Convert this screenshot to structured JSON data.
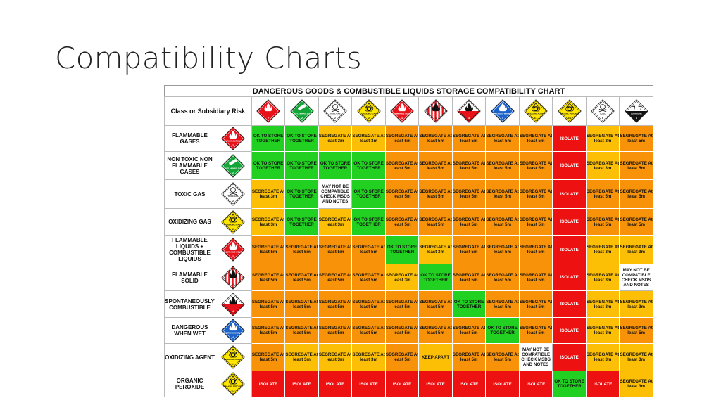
{
  "slide": {
    "title": "Compatibility Charts"
  },
  "chart": {
    "title": "DANGEROUS GOODS & COMBUSTIBLE LIQUIDS STORAGE COMPATIBILITY CHART",
    "corner_label": "Class or Subsidiary Risk",
    "colors": {
      "green": "#22d022",
      "yellow": "#fdbf05",
      "orange": "#f79209",
      "red": "#ee1111",
      "white": "#ffffff"
    },
    "columns": [
      {
        "icon": "flammable-gas-sign-icon",
        "color": "#e8121b",
        "text": "",
        "num": "2",
        "symbol": "flame"
      },
      {
        "icon": "non-flammable-gas-sign-icon",
        "color": "#13a538",
        "text": "NON-FLAMMABLE GAS",
        "num": "2",
        "symbol": "cylinder"
      },
      {
        "icon": "toxic-gas-sign-icon",
        "color": "#ffffff",
        "text": "TOXIC GAS",
        "num": "2",
        "symbol": "skull"
      },
      {
        "icon": "oxidizing-gas-sign-icon",
        "color": "#ffe600",
        "text": "OXIDIZING GAS",
        "num": "2",
        "symbol": "oflame"
      },
      {
        "icon": "flammable-liquid-sign-icon",
        "color": "#e8121b",
        "text": "FLAMMABLE LIQUID",
        "num": "3",
        "symbol": "flame"
      },
      {
        "icon": "flammable-solid-sign-icon",
        "color": "stripes",
        "text": "",
        "num": "4",
        "symbol": "flame"
      },
      {
        "icon": "spontaneously-combustible-sign-icon",
        "color": "half",
        "text": "",
        "num": "4",
        "symbol": "flame"
      },
      {
        "icon": "dangerous-when-wet-sign-icon",
        "color": "#1b62c9",
        "text": "DANGEROUS WHEN WET",
        "num": "4",
        "symbol": "flame"
      },
      {
        "icon": "oxidizing-agent-sign-icon",
        "color": "#ffe600",
        "text": "OXIDIZING AGENT",
        "num": "5.1",
        "symbol": "oflame"
      },
      {
        "icon": "organic-peroxide-sign-icon",
        "color": "#ffe600",
        "text": "ORGANIC PEROXIDE",
        "num": "5.2",
        "symbol": "oflame"
      },
      {
        "icon": "toxic-sign-icon",
        "color": "#ffffff",
        "text": "TOXIC",
        "num": "6",
        "symbol": "skull"
      },
      {
        "icon": "corrosive-sign-icon",
        "color": "corrosive",
        "text": "CORROSIVE",
        "num": "8",
        "symbol": "corrosive"
      }
    ],
    "rows": [
      {
        "label": "FLAMMABLE GASES",
        "icon": "flammable-gas-sign-icon",
        "color": "#e8121b",
        "text": "FLAMMABLE GAS",
        "num": "2",
        "symbol": "flame",
        "cells": [
          {
            "c": "green",
            "t": "OK TO STORE TOGETHER"
          },
          {
            "c": "green",
            "t": "OK TO STORE TOGETHER"
          },
          {
            "c": "yellow",
            "t": "SEGREGATE At least 3m"
          },
          {
            "c": "yellow",
            "t": "SEGREGATE At least 3m"
          },
          {
            "c": "orange",
            "t": "SEGREGATE At least 5m"
          },
          {
            "c": "orange",
            "t": "SEGREGATE At least 5m"
          },
          {
            "c": "orange",
            "t": "SEGREGATE At least 5m"
          },
          {
            "c": "orange",
            "t": "SEGREGATE At least 5m"
          },
          {
            "c": "orange",
            "t": "SEGREGATE At least 5m"
          },
          {
            "c": "red",
            "t": "ISOLATE"
          },
          {
            "c": "yellow",
            "t": "SEGREGATE At least 3m"
          },
          {
            "c": "orange",
            "t": "SEGREGATE At least 5m"
          }
        ]
      },
      {
        "label": "NON TOXIC NON FLAMMABLE GASES",
        "icon": "non-flammable-gas-sign-icon",
        "color": "#13a538",
        "text": "NON-FLAMMABLE GAS",
        "num": "2",
        "symbol": "cylinder",
        "cells": [
          {
            "c": "green",
            "t": "OK TO STORE TOGETHER"
          },
          {
            "c": "green",
            "t": "OK TO STORE TOGETHER"
          },
          {
            "c": "green",
            "t": "OK TO STORE TOGETHER"
          },
          {
            "c": "green",
            "t": "OK TO STORE TOGETHER"
          },
          {
            "c": "orange",
            "t": "SEGREGATE At least 5m"
          },
          {
            "c": "orange",
            "t": "SEGREGATE At least 5m"
          },
          {
            "c": "orange",
            "t": "SEGREGATE At least 5m"
          },
          {
            "c": "orange",
            "t": "SEGREGATE At least 5m"
          },
          {
            "c": "orange",
            "t": "SEGREGATE At least 5m"
          },
          {
            "c": "red",
            "t": "ISOLATE"
          },
          {
            "c": "yellow",
            "t": "SEGREGATE At least 3m"
          },
          {
            "c": "orange",
            "t": "SEGREGATE At least 5m"
          }
        ]
      },
      {
        "label": "TOXIC GAS",
        "icon": "toxic-gas-sign-icon",
        "color": "#ffffff",
        "text": "TOXIC GAS",
        "num": "2",
        "symbol": "skull",
        "cells": [
          {
            "c": "yellow",
            "t": "SEGREGATE At least 3m"
          },
          {
            "c": "green",
            "t": "OK TO STORE TOGETHER"
          },
          {
            "c": "white",
            "t": "MAY NOT BE COMPATIBLE CHECK MSDS AND NOTES"
          },
          {
            "c": "green",
            "t": "OK TO STORE TOGETHER"
          },
          {
            "c": "orange",
            "t": "SEGREGATE At least 5m"
          },
          {
            "c": "orange",
            "t": "SEGREGATE At least 5m"
          },
          {
            "c": "orange",
            "t": "SEGREGATE At least 5m"
          },
          {
            "c": "orange",
            "t": "SEGREGATE At least 5m"
          },
          {
            "c": "orange",
            "t": "SEGREGATE At least 5m"
          },
          {
            "c": "red",
            "t": "ISOLATE"
          },
          {
            "c": "orange",
            "t": "SEGREGATE At least 5m"
          },
          {
            "c": "orange",
            "t": "SEGREGATE At least 5m"
          }
        ]
      },
      {
        "label": "OXIDIZING GAS",
        "icon": "oxidizing-gas-sign-icon",
        "color": "#ffe600",
        "text": "OXIDIZING GAS",
        "num": "2",
        "symbol": "oflame",
        "cells": [
          {
            "c": "yellow",
            "t": "SEGREGATE At least 3m"
          },
          {
            "c": "green",
            "t": "OK TO STORE TOGETHER"
          },
          {
            "c": "yellow",
            "t": "SEGREGATE At least 3m"
          },
          {
            "c": "green",
            "t": "OK TO STORE TOGETHER"
          },
          {
            "c": "orange",
            "t": "SEGREGATE At least 5m"
          },
          {
            "c": "orange",
            "t": "SEGREGATE At least 5m"
          },
          {
            "c": "orange",
            "t": "SEGREGATE At least 5m"
          },
          {
            "c": "orange",
            "t": "SEGREGATE At least 5m"
          },
          {
            "c": "orange",
            "t": "SEGREGATE At least 5m"
          },
          {
            "c": "red",
            "t": "ISOLATE"
          },
          {
            "c": "orange",
            "t": "SEGREGATE At least 5m"
          },
          {
            "c": "orange",
            "t": "SEGREGATE At least 5m"
          }
        ]
      },
      {
        "label": "FLAMMABLE LIQUIDS + COMBUSTIBLE LIQUIDS",
        "icon": "flammable-liquid-sign-icon",
        "color": "#e8121b",
        "text": "FLAMMABLE LIQUID",
        "num": "3",
        "symbol": "flame",
        "cells": [
          {
            "c": "orange",
            "t": "SEGREGATE At least 5m"
          },
          {
            "c": "orange",
            "t": "SEGREGATE At least 5m"
          },
          {
            "c": "orange",
            "t": "SEGREGATE At least 5m"
          },
          {
            "c": "orange",
            "t": "SEGREGATE At least 5m"
          },
          {
            "c": "green",
            "t": "OK TO STORE TOGETHER"
          },
          {
            "c": "yellow",
            "t": "SEGREGATE At least 3m"
          },
          {
            "c": "orange",
            "t": "SEGREGATE At least 5m"
          },
          {
            "c": "orange",
            "t": "SEGREGATE At least 5m"
          },
          {
            "c": "orange",
            "t": "SEGREGATE At least 5m"
          },
          {
            "c": "red",
            "t": "ISOLATE"
          },
          {
            "c": "yellow",
            "t": "SEGREGATE At least 3m"
          },
          {
            "c": "yellow",
            "t": "SEGREGATE At least 3m"
          }
        ]
      },
      {
        "label": "FLAMMABLE SOLID",
        "icon": "flammable-solid-sign-icon",
        "color": "stripes",
        "text": "",
        "num": "4",
        "symbol": "flame",
        "cells": [
          {
            "c": "orange",
            "t": "SEGREGATE At least 5m"
          },
          {
            "c": "orange",
            "t": "SEGREGATE At least 5m"
          },
          {
            "c": "orange",
            "t": "SEGREGATE At least 5m"
          },
          {
            "c": "orange",
            "t": "SEGREGATE At least 5m"
          },
          {
            "c": "yellow",
            "t": "SEGREGATE At least 3m"
          },
          {
            "c": "green",
            "t": "OK TO STORE TOGETHER"
          },
          {
            "c": "orange",
            "t": "SEGREGATE At least 5m"
          },
          {
            "c": "orange",
            "t": "SEGREGATE At least 5m"
          },
          {
            "c": "orange",
            "t": "SEGREGATE At least 5m"
          },
          {
            "c": "red",
            "t": "ISOLATE"
          },
          {
            "c": "yellow",
            "t": "SEGREGATE At least 3m"
          },
          {
            "c": "white",
            "t": "MAY NOT BE COMPATIBLE CHECK MSDS AND NOTES"
          }
        ]
      },
      {
        "label": "SPONTANEOUSLY COMBUSTIBLE",
        "icon": "spontaneously-combustible-sign-icon",
        "color": "half",
        "text": "",
        "num": "4",
        "symbol": "flame",
        "cells": [
          {
            "c": "orange",
            "t": "SEGREGATE At least 5m"
          },
          {
            "c": "orange",
            "t": "SEGREGATE At least 5m"
          },
          {
            "c": "orange",
            "t": "SEGREGATE At least 5m"
          },
          {
            "c": "orange",
            "t": "SEGREGATE At least 5m"
          },
          {
            "c": "orange",
            "t": "SEGREGATE At least 5m"
          },
          {
            "c": "orange",
            "t": "SEGREGATE At least 5m"
          },
          {
            "c": "green",
            "t": "OK TO STORE TOGETHER"
          },
          {
            "c": "orange",
            "t": "SEGREGATE At least 5m"
          },
          {
            "c": "orange",
            "t": "SEGREGATE At least 5m"
          },
          {
            "c": "red",
            "t": "ISOLATE"
          },
          {
            "c": "yellow",
            "t": "SEGREGATE At least 3m"
          },
          {
            "c": "yellow",
            "t": "SEGREGATE At least 3m"
          }
        ]
      },
      {
        "label": "DANGEROUS WHEN WET",
        "icon": "dangerous-when-wet-sign-icon",
        "color": "#1b62c9",
        "text": "DANGEROUS WHEN WET",
        "num": "4",
        "symbol": "flame",
        "cells": [
          {
            "c": "orange",
            "t": "SEGREGATE At least 5m"
          },
          {
            "c": "orange",
            "t": "SEGREGATE At least 5m"
          },
          {
            "c": "orange",
            "t": "SEGREGATE At least 5m"
          },
          {
            "c": "orange",
            "t": "SEGREGATE At least 5m"
          },
          {
            "c": "orange",
            "t": "SEGREGATE At least 5m"
          },
          {
            "c": "orange",
            "t": "SEGREGATE At least 5m"
          },
          {
            "c": "orange",
            "t": "SEGREGATE At least 5m"
          },
          {
            "c": "green",
            "t": "OK TO STORE TOGETHER"
          },
          {
            "c": "orange",
            "t": "SEGREGATE At least 5m"
          },
          {
            "c": "red",
            "t": "ISOLATE"
          },
          {
            "c": "yellow",
            "t": "SEGREGATE At least 3m"
          },
          {
            "c": "orange",
            "t": "SEGREGATE At least 5m"
          }
        ]
      },
      {
        "label": "OXIDIZING AGENT",
        "icon": "oxidizing-agent-sign-icon",
        "color": "#ffe600",
        "text": "OXIDIZING AGENT",
        "num": "5.1",
        "symbol": "oflame",
        "cells": [
          {
            "c": "orange",
            "t": "SEGREGATE At least 5m"
          },
          {
            "c": "yellow",
            "t": "SEGREGATE At least 3m"
          },
          {
            "c": "yellow",
            "t": "SEGREGATE At least 3m"
          },
          {
            "c": "yellow",
            "t": "SEGREGATE At least 3m"
          },
          {
            "c": "orange",
            "t": "SEGREGATE At least 5m"
          },
          {
            "c": "yellow",
            "t": "KEEP APART"
          },
          {
            "c": "orange",
            "t": "SEGREGATE At least 5m"
          },
          {
            "c": "orange",
            "t": "SEGREGATE At least 5m"
          },
          {
            "c": "white",
            "t": "MAY NOT BE COMPATIBLE CHECK MSDS AND NOTES"
          },
          {
            "c": "red",
            "t": "ISOLATE"
          },
          {
            "c": "yellow",
            "t": "SEGREGATE At least 3m"
          },
          {
            "c": "yellow",
            "t": "SEGREGATE At least 3m"
          }
        ]
      },
      {
        "label": "ORGANIC PEROXIDE",
        "icon": "organic-peroxide-sign-icon",
        "color": "#ffe600",
        "text": "ORGANIC PEROXIDE",
        "num": "5.2",
        "symbol": "oflame",
        "cells": [
          {
            "c": "red",
            "t": "ISOLATE"
          },
          {
            "c": "red",
            "t": "ISOLATE"
          },
          {
            "c": "red",
            "t": "ISOLATE"
          },
          {
            "c": "red",
            "t": "ISOLATE"
          },
          {
            "c": "red",
            "t": "ISOLATE"
          },
          {
            "c": "red",
            "t": "ISOLATE"
          },
          {
            "c": "red",
            "t": "ISOLATE"
          },
          {
            "c": "red",
            "t": "ISOLATE"
          },
          {
            "c": "red",
            "t": "ISOLATE"
          },
          {
            "c": "green",
            "t": "OK TO STORE TOGETHER"
          },
          {
            "c": "red",
            "t": "ISOLATE"
          },
          {
            "c": "yellow",
            "t": "SEGREGATE At least 3m"
          }
        ]
      }
    ]
  }
}
